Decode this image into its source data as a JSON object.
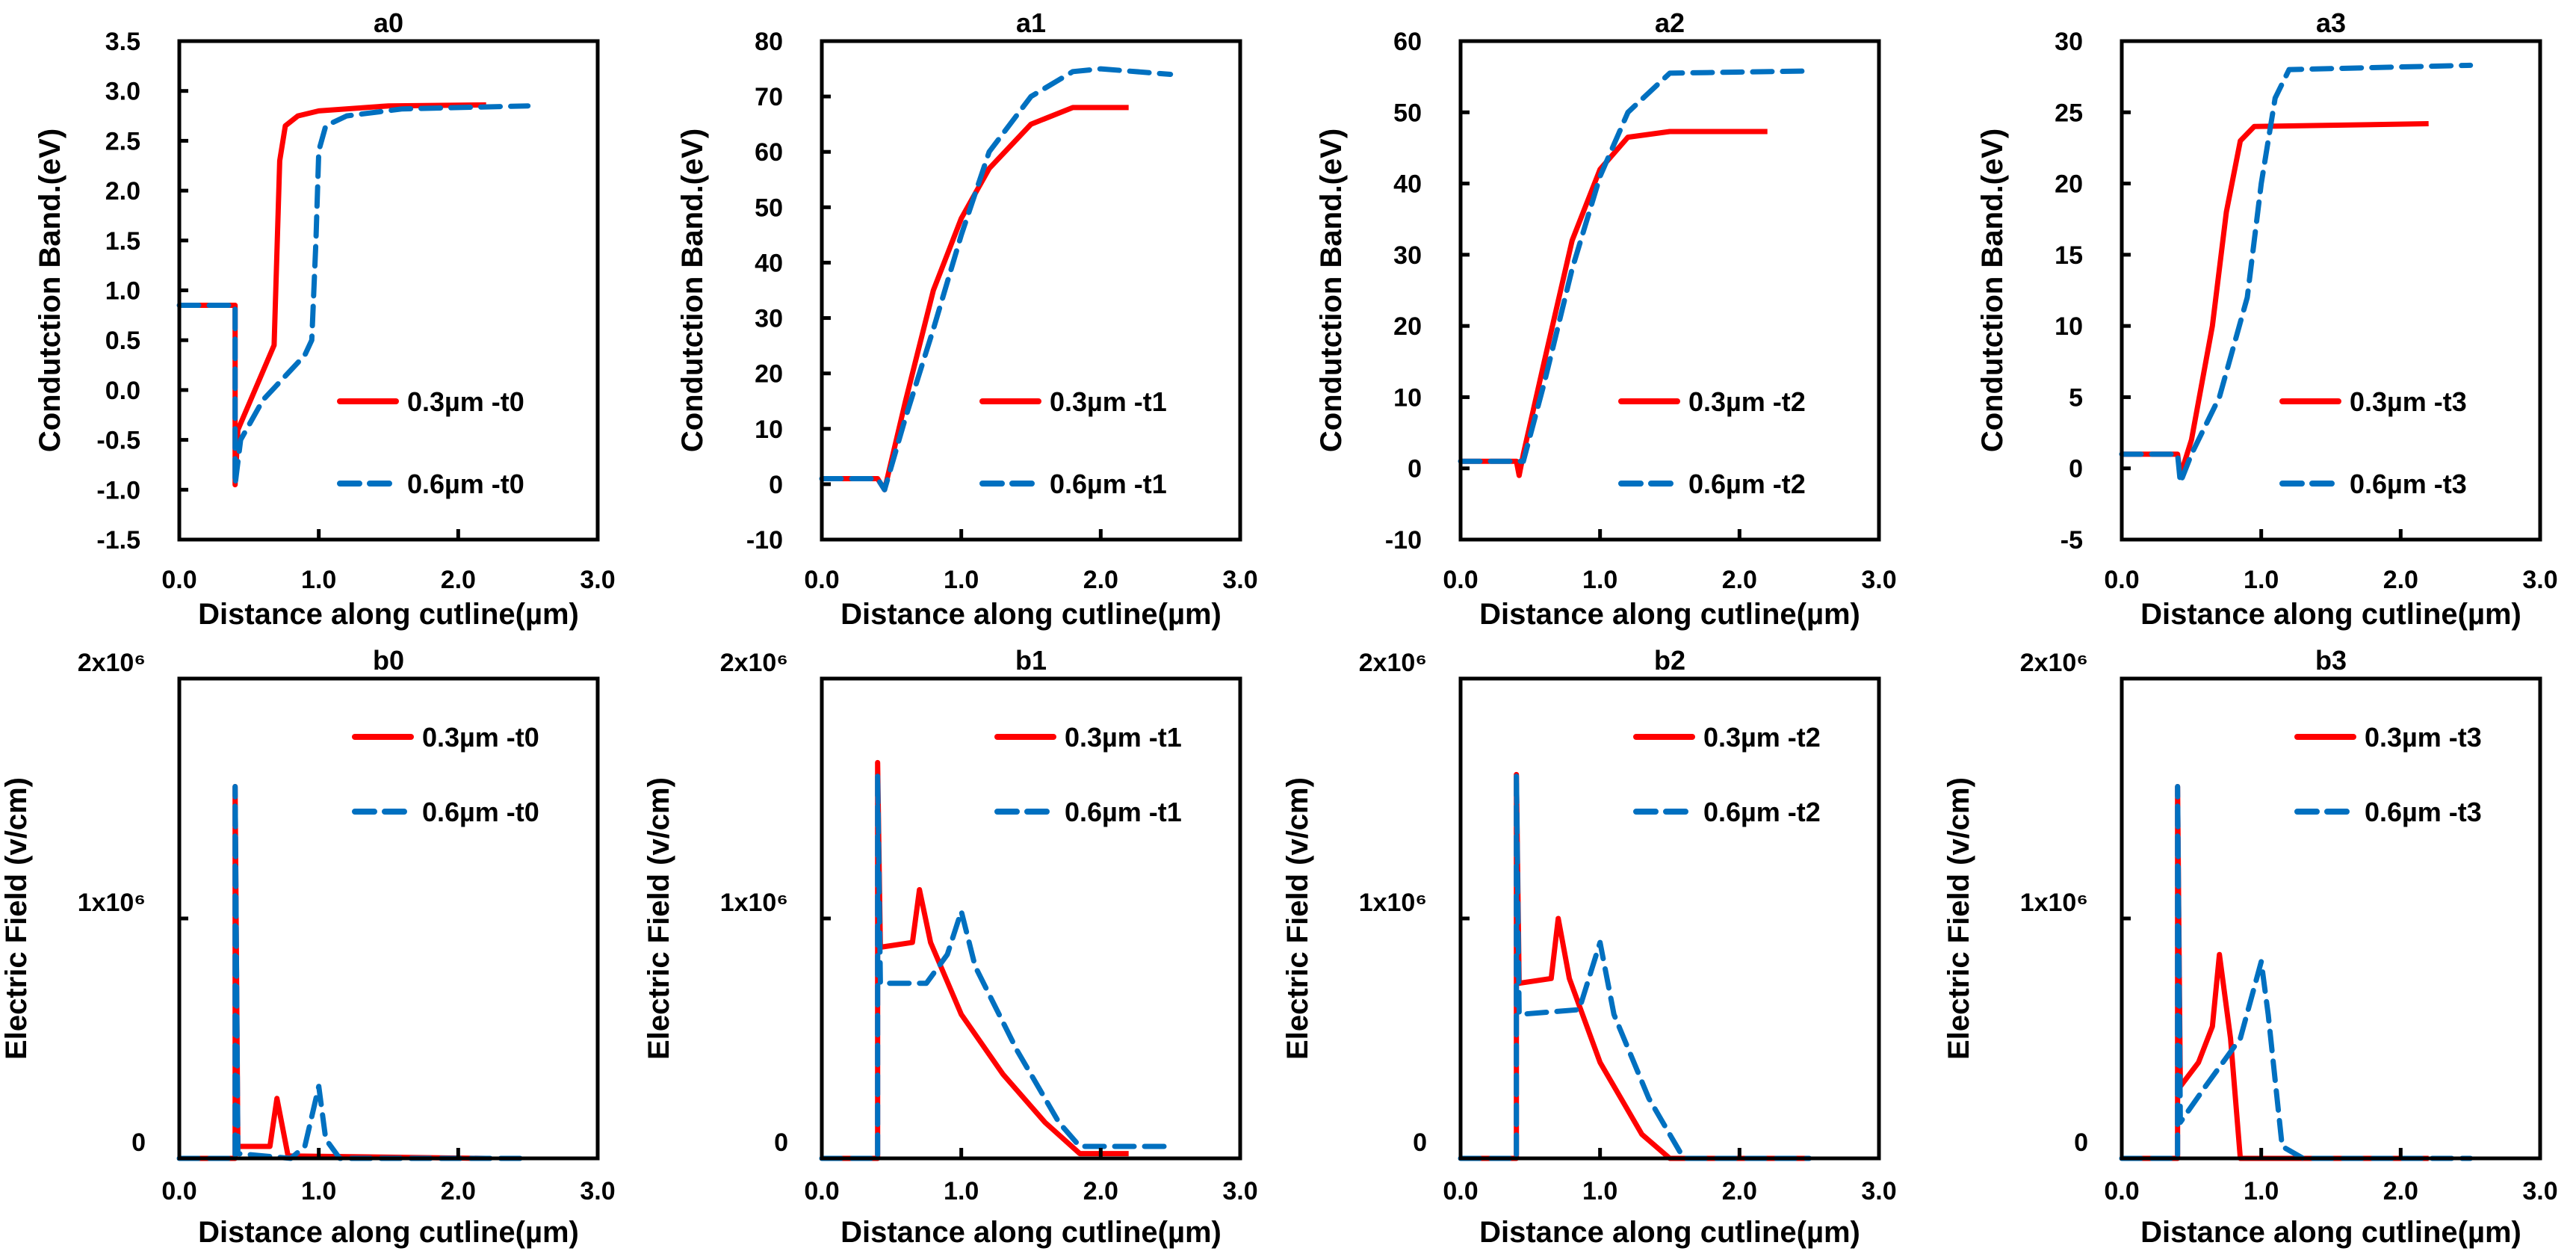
{
  "colors": {
    "series1": "#ff0000",
    "series2": "#0070c0",
    "axis": "#000000"
  },
  "chart_data": [
    {
      "type": "line",
      "title": "a0",
      "xlabel": "Distance along cutline(µm)",
      "ylabel": "Condutction Band.(eV)",
      "xlim": [
        0,
        3
      ],
      "ylim": [
        -1.5,
        3.5
      ],
      "xticks": [
        "0.0",
        "1.0",
        "2.0",
        "3.0"
      ],
      "xtick_values": [
        0,
        1,
        2,
        3
      ],
      "yticks": [
        "-1.5",
        "-1.0",
        "-0.5",
        "0.0",
        "0.5",
        "1.0",
        "1.5",
        "2.0",
        "2.5",
        "3.0",
        "3.5"
      ],
      "ytick_values": [
        -1.5,
        -1,
        -0.5,
        0,
        0.5,
        1,
        1.5,
        2,
        2.5,
        3,
        3.5
      ],
      "legend": "bottom-right",
      "series": [
        {
          "name": "0.3µm -t0",
          "style": "solid",
          "points": [
            [
              0,
              0.85
            ],
            [
              0.4,
              0.85
            ],
            [
              0.4,
              -0.95
            ],
            [
              0.42,
              -0.4
            ],
            [
              0.68,
              0.45
            ],
            [
              0.72,
              2.3
            ],
            [
              0.76,
              2.65
            ],
            [
              0.85,
              2.75
            ],
            [
              1.0,
              2.8
            ],
            [
              1.5,
              2.85
            ],
            [
              2.2,
              2.86
            ]
          ]
        },
        {
          "name": "0.6µm -t0",
          "style": "dashed",
          "points": [
            [
              0,
              0.85
            ],
            [
              0.4,
              0.85
            ],
            [
              0.4,
              -0.95
            ],
            [
              0.44,
              -0.5
            ],
            [
              0.6,
              -0.1
            ],
            [
              0.9,
              0.35
            ],
            [
              0.95,
              0.5
            ],
            [
              0.98,
              1.5
            ],
            [
              1.0,
              2.4
            ],
            [
              1.05,
              2.65
            ],
            [
              1.2,
              2.75
            ],
            [
              1.6,
              2.82
            ],
            [
              2.5,
              2.85
            ]
          ]
        }
      ]
    },
    {
      "type": "line",
      "title": "a1",
      "xlabel": "Distance along cutline(µm)",
      "ylabel": "Condutction Band.(eV)",
      "xlim": [
        0,
        3
      ],
      "ylim": [
        -10,
        80
      ],
      "xticks": [
        "0.0",
        "1.0",
        "2.0",
        "3.0"
      ],
      "xtick_values": [
        0,
        1,
        2,
        3
      ],
      "yticks": [
        "-10",
        "0",
        "10",
        "20",
        "30",
        "40",
        "50",
        "60",
        "70",
        "80"
      ],
      "ytick_values": [
        -10,
        0,
        10,
        20,
        30,
        40,
        50,
        60,
        70,
        80
      ],
      "legend": "bottom-right",
      "series": [
        {
          "name": "0.3µm -t1",
          "style": "solid",
          "points": [
            [
              0,
              1
            ],
            [
              0.4,
              1
            ],
            [
              0.45,
              -1
            ],
            [
              0.6,
              15
            ],
            [
              0.8,
              35
            ],
            [
              1.0,
              48
            ],
            [
              1.2,
              57
            ],
            [
              1.5,
              65
            ],
            [
              1.8,
              68
            ],
            [
              2.2,
              68
            ]
          ]
        },
        {
          "name": "0.6µm -t1",
          "style": "dashed",
          "points": [
            [
              0,
              1
            ],
            [
              0.4,
              1
            ],
            [
              0.45,
              -1
            ],
            [
              0.6,
              12
            ],
            [
              0.8,
              28
            ],
            [
              1.0,
              45
            ],
            [
              1.2,
              60
            ],
            [
              1.5,
              70
            ],
            [
              1.8,
              74.5
            ],
            [
              2.0,
              75
            ],
            [
              2.5,
              74
            ]
          ]
        }
      ]
    },
    {
      "type": "line",
      "title": "a2",
      "xlabel": "Distance along cutline(µm)",
      "ylabel": "Condutction Band.(eV)",
      "xlim": [
        0,
        3
      ],
      "ylim": [
        -10,
        60
      ],
      "xticks": [
        "0.0",
        "1.0",
        "2.0",
        "3.0"
      ],
      "xtick_values": [
        0,
        1,
        2,
        3
      ],
      "yticks": [
        "-10",
        "0",
        "10",
        "20",
        "30",
        "40",
        "50",
        "60"
      ],
      "ytick_values": [
        -10,
        0,
        10,
        20,
        30,
        40,
        50,
        60
      ],
      "legend": "bottom-right",
      "series": [
        {
          "name": "0.3µm -t2",
          "style": "solid",
          "points": [
            [
              0,
              1
            ],
            [
              0.4,
              1
            ],
            [
              0.42,
              -1
            ],
            [
              0.45,
              2
            ],
            [
              0.6,
              15
            ],
            [
              0.8,
              32
            ],
            [
              1.0,
              42
            ],
            [
              1.2,
              46.5
            ],
            [
              1.5,
              47.3
            ],
            [
              2.2,
              47.3
            ]
          ]
        },
        {
          "name": "0.6µm -t2",
          "style": "dashed",
          "points": [
            [
              0,
              1
            ],
            [
              0.4,
              1
            ],
            [
              0.45,
              1
            ],
            [
              0.6,
              12
            ],
            [
              0.8,
              28
            ],
            [
              1.0,
              41
            ],
            [
              1.2,
              50
            ],
            [
              1.5,
              55.5
            ],
            [
              2.5,
              55.8
            ]
          ]
        }
      ]
    },
    {
      "type": "line",
      "title": "a3",
      "xlabel": "Distance along cutline(µm)",
      "ylabel": "Condutction Band.(eV)",
      "xlim": [
        0,
        3
      ],
      "ylim": [
        -5,
        30
      ],
      "xticks": [
        "0.0",
        "1.0",
        "2.0",
        "3.0"
      ],
      "xtick_values": [
        0,
        1,
        2,
        3
      ],
      "yticks": [
        "-5",
        "0",
        "5",
        "10",
        "15",
        "20",
        "25",
        "30"
      ],
      "ytick_values": [
        -5,
        0,
        5,
        10,
        15,
        20,
        25,
        30
      ],
      "legend": "bottom-right",
      "series": [
        {
          "name": "0.3µm -t3",
          "style": "solid",
          "points": [
            [
              0,
              1
            ],
            [
              0.4,
              1
            ],
            [
              0.42,
              -0.5
            ],
            [
              0.5,
              2
            ],
            [
              0.65,
              10
            ],
            [
              0.75,
              18
            ],
            [
              0.85,
              23
            ],
            [
              0.95,
              24
            ],
            [
              2.2,
              24.2
            ]
          ]
        },
        {
          "name": "0.6µm -t3",
          "style": "dashed",
          "points": [
            [
              0,
              1
            ],
            [
              0.4,
              1
            ],
            [
              0.42,
              -1
            ],
            [
              0.5,
              1
            ],
            [
              0.7,
              5
            ],
            [
              0.9,
              12
            ],
            [
              1.0,
              20
            ],
            [
              1.1,
              26
            ],
            [
              1.2,
              28
            ],
            [
              2.5,
              28.3
            ]
          ]
        }
      ]
    },
    {
      "type": "line",
      "title": "b0",
      "xlabel": "Distance along cutline(µm)",
      "ylabel": "Electric Field (v/cm)",
      "xlim": [
        0,
        3
      ],
      "ylim": [
        0,
        2000000
      ],
      "xticks": [
        "0.0",
        "1.0",
        "2.0",
        "3.0"
      ],
      "xtick_values": [
        0,
        1,
        2,
        3
      ],
      "yticks": [
        "0",
        "1x10⁶",
        "2x10⁶"
      ],
      "ytick_values": [
        0,
        1000000,
        2000000
      ],
      "legend": "top-right",
      "series": [
        {
          "name": "0.3µm -t0",
          "style": "solid",
          "points": [
            [
              0,
              0
            ],
            [
              0.4,
              0
            ],
            [
              0.4,
              1550000
            ],
            [
              0.42,
              50000
            ],
            [
              0.65,
              50000
            ],
            [
              0.7,
              250000
            ],
            [
              0.78,
              10000
            ],
            [
              2.2,
              0
            ]
          ]
        },
        {
          "name": "0.6µm -t0",
          "style": "dashed",
          "points": [
            [
              0,
              0
            ],
            [
              0.4,
              0
            ],
            [
              0.4,
              1550000
            ],
            [
              0.42,
              20000
            ],
            [
              0.8,
              0
            ],
            [
              0.9,
              50000
            ],
            [
              1.0,
              300000
            ],
            [
              1.05,
              80000
            ],
            [
              1.15,
              0
            ],
            [
              2.5,
              0
            ]
          ]
        }
      ]
    },
    {
      "type": "line",
      "title": "b1",
      "xlabel": "Distance along cutline(µm)",
      "ylabel": "Electric Field (v/cm)",
      "xlim": [
        0,
        3
      ],
      "ylim": [
        0,
        2000000
      ],
      "xticks": [
        "0.0",
        "1.0",
        "2.0",
        "3.0"
      ],
      "xtick_values": [
        0,
        1,
        2,
        3
      ],
      "yticks": [
        "0",
        "1x10⁶",
        "2x10⁶"
      ],
      "ytick_values": [
        0,
        1000000,
        2000000
      ],
      "legend": "top-right",
      "series": [
        {
          "name": "0.3µm -t1",
          "style": "solid",
          "points": [
            [
              0,
              0
            ],
            [
              0.4,
              0
            ],
            [
              0.4,
              1650000
            ],
            [
              0.42,
              880000
            ],
            [
              0.65,
              900000
            ],
            [
              0.7,
              1120000
            ],
            [
              0.78,
              900000
            ],
            [
              1.0,
              600000
            ],
            [
              1.3,
              350000
            ],
            [
              1.6,
              150000
            ],
            [
              1.85,
              20000
            ],
            [
              2.2,
              20000
            ]
          ]
        },
        {
          "name": "0.6µm -t1",
          "style": "dashed",
          "points": [
            [
              0,
              0
            ],
            [
              0.4,
              0
            ],
            [
              0.4,
              1600000
            ],
            [
              0.42,
              730000
            ],
            [
              0.75,
              730000
            ],
            [
              0.9,
              850000
            ],
            [
              1.0,
              1030000
            ],
            [
              1.1,
              800000
            ],
            [
              1.4,
              450000
            ],
            [
              1.7,
              150000
            ],
            [
              1.85,
              50000
            ],
            [
              2.5,
              50000
            ]
          ]
        }
      ]
    },
    {
      "type": "line",
      "title": "b2",
      "xlabel": "Distance along cutline(µm)",
      "ylabel": "Electric Field (v/cm)",
      "xlim": [
        0,
        3
      ],
      "ylim": [
        0,
        2000000
      ],
      "xticks": [
        "0.0",
        "1.0",
        "2.0",
        "3.0"
      ],
      "xtick_values": [
        0,
        1,
        2,
        3
      ],
      "yticks": [
        "0",
        "1x10⁶",
        "2x10⁶"
      ],
      "ytick_values": [
        0,
        1000000,
        2000000
      ],
      "legend": "top-right",
      "series": [
        {
          "name": "0.3µm -t2",
          "style": "solid",
          "points": [
            [
              0,
              0
            ],
            [
              0.4,
              0
            ],
            [
              0.4,
              1600000
            ],
            [
              0.42,
              730000
            ],
            [
              0.65,
              750000
            ],
            [
              0.7,
              1000000
            ],
            [
              0.78,
              750000
            ],
            [
              1.0,
              400000
            ],
            [
              1.3,
              100000
            ],
            [
              1.5,
              0
            ],
            [
              2.5,
              0
            ]
          ]
        },
        {
          "name": "0.6µm -t2",
          "style": "dashed",
          "points": [
            [
              0,
              0
            ],
            [
              0.4,
              0
            ],
            [
              0.4,
              1600000
            ],
            [
              0.42,
              600000
            ],
            [
              0.85,
              620000
            ],
            [
              1.0,
              900000
            ],
            [
              1.1,
              600000
            ],
            [
              1.35,
              250000
            ],
            [
              1.6,
              0
            ],
            [
              2.5,
              0
            ]
          ]
        }
      ]
    },
    {
      "type": "line",
      "title": "b3",
      "xlabel": "Distance along cutline(µm)",
      "ylabel": "Electric Field (v/cm)",
      "xlim": [
        0,
        3
      ],
      "ylim": [
        0,
        2000000
      ],
      "xticks": [
        "0.0",
        "1.0",
        "2.0",
        "3.0"
      ],
      "xtick_values": [
        0,
        1,
        2,
        3
      ],
      "yticks": [
        "0",
        "1x10⁶",
        "2x10⁶"
      ],
      "ytick_values": [
        0,
        1000000,
        2000000
      ],
      "legend": "top-right",
      "series": [
        {
          "name": "0.3µm -t3",
          "style": "solid",
          "points": [
            [
              0,
              0
            ],
            [
              0.4,
              0
            ],
            [
              0.4,
              1550000
            ],
            [
              0.42,
              300000
            ],
            [
              0.55,
              400000
            ],
            [
              0.65,
              550000
            ],
            [
              0.7,
              850000
            ],
            [
              0.78,
              500000
            ],
            [
              0.85,
              0
            ],
            [
              2.2,
              0
            ]
          ]
        },
        {
          "name": "0.6µm -t3",
          "style": "dashed",
          "points": [
            [
              0,
              0
            ],
            [
              0.4,
              0
            ],
            [
              0.4,
              1550000
            ],
            [
              0.42,
              150000
            ],
            [
              0.6,
              300000
            ],
            [
              0.85,
              500000
            ],
            [
              1.0,
              820000
            ],
            [
              1.05,
              600000
            ],
            [
              1.15,
              50000
            ],
            [
              1.3,
              0
            ],
            [
              2.5,
              0
            ]
          ]
        }
      ]
    }
  ]
}
